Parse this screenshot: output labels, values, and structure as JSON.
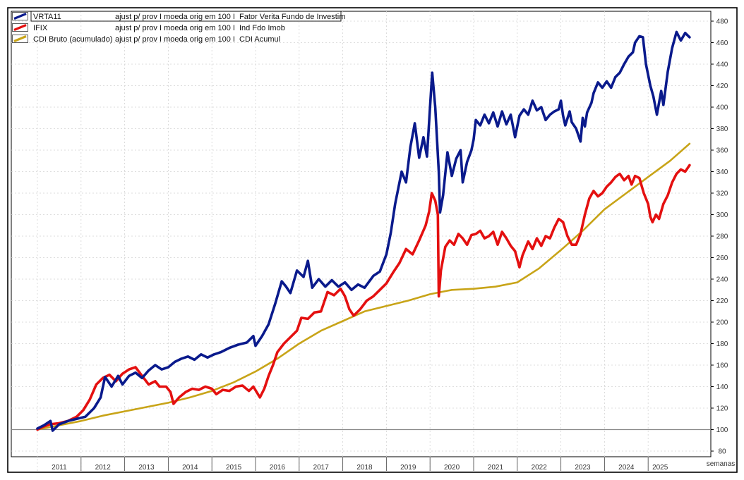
{
  "chart_data": {
    "type": "line",
    "x_unit_label": "semanas",
    "x_years": [
      "2011",
      "2012",
      "2013",
      "2014",
      "2015",
      "2016",
      "2017",
      "2018",
      "2019",
      "2020",
      "2021",
      "2022",
      "2023",
      "2024",
      "2025"
    ],
    "ylim": [
      80,
      480
    ],
    "y_ticks": [
      80,
      100,
      120,
      140,
      160,
      180,
      200,
      220,
      240,
      260,
      280,
      300,
      320,
      340,
      360,
      380,
      400,
      420,
      440,
      460,
      480
    ],
    "baseline": 100,
    "grid": true,
    "legend_position": "top-left",
    "legend": [
      {
        "name": "VRTA11",
        "adj": "ajust p/  prov  I moeda orig em 100  I",
        "desc": "Fator Verita Fundo de Investim"
      },
      {
        "name": "IFIX",
        "adj": "ajust p/  prov  I moeda orig em 100  I",
        "desc": "Ind Fdo Imob"
      },
      {
        "name": "CDI Bruto (acumulado)",
        "adj": "ajust p/  prov  I moeda orig em 100  I",
        "desc": "CDI Acumul"
      }
    ],
    "series": [
      {
        "name": "VRTA11",
        "color": "#0a1a8c",
        "points": [
          [
            2011.0,
            101
          ],
          [
            2011.15,
            104
          ],
          [
            2011.3,
            108
          ],
          [
            2011.35,
            99
          ],
          [
            2011.5,
            105
          ],
          [
            2011.7,
            108
          ],
          [
            2011.9,
            110
          ],
          [
            2012.1,
            112
          ],
          [
            2012.3,
            120
          ],
          [
            2012.45,
            130
          ],
          [
            2012.55,
            149
          ],
          [
            2012.7,
            140
          ],
          [
            2012.85,
            150
          ],
          [
            2012.95,
            142
          ],
          [
            2013.1,
            150
          ],
          [
            2013.25,
            153
          ],
          [
            2013.4,
            148
          ],
          [
            2013.55,
            155
          ],
          [
            2013.7,
            160
          ],
          [
            2013.85,
            156
          ],
          [
            2014.0,
            158
          ],
          [
            2014.15,
            163
          ],
          [
            2014.3,
            166
          ],
          [
            2014.45,
            168
          ],
          [
            2014.6,
            165
          ],
          [
            2014.75,
            170
          ],
          [
            2014.9,
            167
          ],
          [
            2015.05,
            170
          ],
          [
            2015.2,
            172
          ],
          [
            2015.4,
            176
          ],
          [
            2015.6,
            179
          ],
          [
            2015.8,
            181
          ],
          [
            2015.95,
            187
          ],
          [
            2016.0,
            178
          ],
          [
            2016.15,
            187
          ],
          [
            2016.3,
            198
          ],
          [
            2016.45,
            217
          ],
          [
            2016.6,
            238
          ],
          [
            2016.7,
            233
          ],
          [
            2016.8,
            227
          ],
          [
            2016.95,
            248
          ],
          [
            2017.1,
            242
          ],
          [
            2017.2,
            257
          ],
          [
            2017.3,
            232
          ],
          [
            2017.45,
            240
          ],
          [
            2017.6,
            233
          ],
          [
            2017.75,
            239
          ],
          [
            2017.9,
            233
          ],
          [
            2018.05,
            237
          ],
          [
            2018.2,
            230
          ],
          [
            2018.35,
            235
          ],
          [
            2018.5,
            232
          ],
          [
            2018.7,
            243
          ],
          [
            2018.85,
            247
          ],
          [
            2019.0,
            263
          ],
          [
            2019.1,
            283
          ],
          [
            2019.2,
            310
          ],
          [
            2019.35,
            340
          ],
          [
            2019.45,
            330
          ],
          [
            2019.55,
            363
          ],
          [
            2019.65,
            385
          ],
          [
            2019.75,
            353
          ],
          [
            2019.85,
            372
          ],
          [
            2019.93,
            354
          ],
          [
            2020.0,
            400
          ],
          [
            2020.05,
            432
          ],
          [
            2020.12,
            400
          ],
          [
            2020.2,
            340
          ],
          [
            2020.23,
            302
          ],
          [
            2020.3,
            318
          ],
          [
            2020.4,
            358
          ],
          [
            2020.5,
            336
          ],
          [
            2020.6,
            352
          ],
          [
            2020.7,
            360
          ],
          [
            2020.75,
            330
          ],
          [
            2020.85,
            349
          ],
          [
            2020.95,
            360
          ],
          [
            2021.0,
            370
          ],
          [
            2021.05,
            388
          ],
          [
            2021.15,
            383
          ],
          [
            2021.25,
            393
          ],
          [
            2021.35,
            385
          ],
          [
            2021.45,
            395
          ],
          [
            2021.55,
            382
          ],
          [
            2021.65,
            396
          ],
          [
            2021.75,
            384
          ],
          [
            2021.85,
            393
          ],
          [
            2021.95,
            372
          ],
          [
            2022.05,
            392
          ],
          [
            2022.15,
            398
          ],
          [
            2022.25,
            393
          ],
          [
            2022.35,
            406
          ],
          [
            2022.45,
            397
          ],
          [
            2022.55,
            400
          ],
          [
            2022.65,
            388
          ],
          [
            2022.75,
            393
          ],
          [
            2022.85,
            396
          ],
          [
            2022.95,
            398
          ],
          [
            2023.0,
            406
          ],
          [
            2023.05,
            392
          ],
          [
            2023.1,
            383
          ],
          [
            2023.2,
            396
          ],
          [
            2023.25,
            386
          ],
          [
            2023.35,
            380
          ],
          [
            2023.45,
            368
          ],
          [
            2023.5,
            390
          ],
          [
            2023.55,
            382
          ],
          [
            2023.6,
            395
          ],
          [
            2023.7,
            404
          ],
          [
            2023.75,
            413
          ],
          [
            2023.85,
            423
          ],
          [
            2023.95,
            418
          ],
          [
            2024.05,
            424
          ],
          [
            2024.15,
            418
          ],
          [
            2024.25,
            428
          ],
          [
            2024.35,
            432
          ],
          [
            2024.45,
            440
          ],
          [
            2024.55,
            447
          ],
          [
            2024.65,
            451
          ],
          [
            2024.7,
            460
          ],
          [
            2024.8,
            466
          ],
          [
            2024.88,
            465
          ],
          [
            2024.95,
            440
          ],
          [
            2025.05,
            420
          ],
          [
            2025.12,
            410
          ],
          [
            2025.2,
            393
          ],
          [
            2025.3,
            415
          ],
          [
            2025.35,
            402
          ],
          [
            2025.45,
            433
          ],
          [
            2025.55,
            455
          ],
          [
            2025.65,
            470
          ],
          [
            2025.75,
            462
          ],
          [
            2025.85,
            469
          ],
          [
            2025.95,
            465
          ]
        ]
      },
      {
        "name": "IFIX",
        "color": "#e41010",
        "points": [
          [
            2011.0,
            100
          ],
          [
            2011.15,
            103
          ],
          [
            2011.3,
            105
          ],
          [
            2011.5,
            106
          ],
          [
            2011.7,
            108
          ],
          [
            2011.9,
            112
          ],
          [
            2012.05,
            118
          ],
          [
            2012.2,
            128
          ],
          [
            2012.35,
            142
          ],
          [
            2012.5,
            148
          ],
          [
            2012.65,
            151
          ],
          [
            2012.8,
            145
          ],
          [
            2012.95,
            152
          ],
          [
            2013.1,
            156
          ],
          [
            2013.25,
            158
          ],
          [
            2013.4,
            150
          ],
          [
            2013.55,
            142
          ],
          [
            2013.7,
            145
          ],
          [
            2013.8,
            140
          ],
          [
            2013.95,
            140
          ],
          [
            2014.05,
            135
          ],
          [
            2014.12,
            124
          ],
          [
            2014.25,
            130
          ],
          [
            2014.4,
            135
          ],
          [
            2014.55,
            138
          ],
          [
            2014.7,
            137
          ],
          [
            2014.85,
            140
          ],
          [
            2015.0,
            138
          ],
          [
            2015.1,
            133
          ],
          [
            2015.25,
            137
          ],
          [
            2015.4,
            136
          ],
          [
            2015.55,
            140
          ],
          [
            2015.7,
            141
          ],
          [
            2015.85,
            136
          ],
          [
            2015.95,
            140
          ],
          [
            2016.1,
            130
          ],
          [
            2016.2,
            138
          ],
          [
            2016.3,
            150
          ],
          [
            2016.4,
            160
          ],
          [
            2016.5,
            172
          ],
          [
            2016.65,
            180
          ],
          [
            2016.8,
            186
          ],
          [
            2016.95,
            192
          ],
          [
            2017.05,
            204
          ],
          [
            2017.2,
            203
          ],
          [
            2017.35,
            209
          ],
          [
            2017.5,
            210
          ],
          [
            2017.65,
            228
          ],
          [
            2017.8,
            225
          ],
          [
            2017.95,
            231
          ],
          [
            2018.05,
            224
          ],
          [
            2018.15,
            212
          ],
          [
            2018.25,
            206
          ],
          [
            2018.4,
            212
          ],
          [
            2018.55,
            220
          ],
          [
            2018.7,
            224
          ],
          [
            2018.85,
            230
          ],
          [
            2019.0,
            236
          ],
          [
            2019.15,
            246
          ],
          [
            2019.3,
            255
          ],
          [
            2019.45,
            268
          ],
          [
            2019.6,
            263
          ],
          [
            2019.75,
            276
          ],
          [
            2019.9,
            290
          ],
          [
            2019.98,
            303
          ],
          [
            2020.04,
            320
          ],
          [
            2020.12,
            313
          ],
          [
            2020.18,
            300
          ],
          [
            2020.2,
            224
          ],
          [
            2020.25,
            248
          ],
          [
            2020.35,
            270
          ],
          [
            2020.45,
            276
          ],
          [
            2020.55,
            272
          ],
          [
            2020.65,
            282
          ],
          [
            2020.75,
            278
          ],
          [
            2020.85,
            272
          ],
          [
            2020.95,
            281
          ],
          [
            2021.05,
            282
          ],
          [
            2021.15,
            285
          ],
          [
            2021.25,
            278
          ],
          [
            2021.35,
            280
          ],
          [
            2021.45,
            284
          ],
          [
            2021.55,
            272
          ],
          [
            2021.65,
            284
          ],
          [
            2021.75,
            278
          ],
          [
            2021.85,
            271
          ],
          [
            2021.95,
            266
          ],
          [
            2022.05,
            251
          ],
          [
            2022.12,
            262
          ],
          [
            2022.25,
            275
          ],
          [
            2022.35,
            268
          ],
          [
            2022.45,
            278
          ],
          [
            2022.55,
            271
          ],
          [
            2022.65,
            280
          ],
          [
            2022.75,
            278
          ],
          [
            2022.85,
            288
          ],
          [
            2022.95,
            296
          ],
          [
            2023.05,
            293
          ],
          [
            2023.15,
            280
          ],
          [
            2023.25,
            272
          ],
          [
            2023.35,
            272
          ],
          [
            2023.45,
            282
          ],
          [
            2023.55,
            300
          ],
          [
            2023.65,
            315
          ],
          [
            2023.75,
            322
          ],
          [
            2023.85,
            317
          ],
          [
            2023.95,
            320
          ],
          [
            2024.05,
            326
          ],
          [
            2024.15,
            330
          ],
          [
            2024.25,
            335
          ],
          [
            2024.35,
            338
          ],
          [
            2024.45,
            332
          ],
          [
            2024.55,
            336
          ],
          [
            2024.62,
            328
          ],
          [
            2024.7,
            336
          ],
          [
            2024.8,
            334
          ],
          [
            2024.9,
            320
          ],
          [
            2025.0,
            310
          ],
          [
            2025.05,
            298
          ],
          [
            2025.1,
            293
          ],
          [
            2025.18,
            300
          ],
          [
            2025.25,
            296
          ],
          [
            2025.35,
            310
          ],
          [
            2025.45,
            318
          ],
          [
            2025.55,
            330
          ],
          [
            2025.65,
            338
          ],
          [
            2025.75,
            342
          ],
          [
            2025.85,
            340
          ],
          [
            2025.95,
            346
          ]
        ]
      },
      {
        "name": "CDI Bruto (acumulado)",
        "color": "#c8a418",
        "points": [
          [
            2011.0,
            100
          ],
          [
            2011.5,
            104
          ],
          [
            2012.0,
            108
          ],
          [
            2012.5,
            113
          ],
          [
            2013.0,
            117
          ],
          [
            2013.5,
            121
          ],
          [
            2014.0,
            125
          ],
          [
            2014.5,
            130
          ],
          [
            2015.0,
            136
          ],
          [
            2015.5,
            144
          ],
          [
            2016.0,
            154
          ],
          [
            2016.5,
            166
          ],
          [
            2017.0,
            180
          ],
          [
            2017.5,
            192
          ],
          [
            2018.0,
            201
          ],
          [
            2018.5,
            210
          ],
          [
            2019.0,
            215
          ],
          [
            2019.5,
            220
          ],
          [
            2020.0,
            226
          ],
          [
            2020.5,
            230
          ],
          [
            2021.0,
            231
          ],
          [
            2021.5,
            233
          ],
          [
            2022.0,
            237
          ],
          [
            2022.5,
            250
          ],
          [
            2023.0,
            267
          ],
          [
            2023.5,
            285
          ],
          [
            2024.0,
            305
          ],
          [
            2024.5,
            320
          ],
          [
            2025.0,
            335
          ],
          [
            2025.5,
            350
          ],
          [
            2025.95,
            366
          ]
        ]
      }
    ]
  }
}
